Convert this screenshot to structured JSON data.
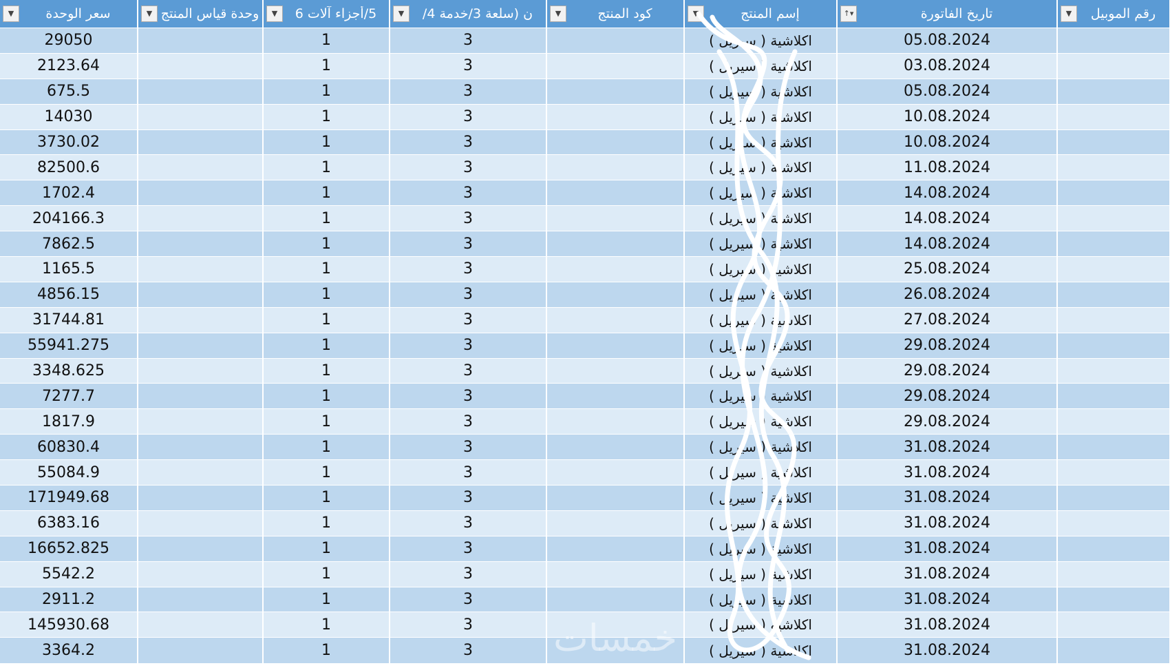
{
  "columns": [
    {
      "label": "سعر الوحدة",
      "filter": "filter-dropdown"
    },
    {
      "label": "وحدة قياس المنتج",
      "filter": "filter-dropdown"
    },
    {
      "label": "5/أجزاء آلات 6",
      "filter": "filter-dropdown"
    },
    {
      "label": "ن (سلعة 3/خدمة 4/",
      "filter": "filter-dropdown"
    },
    {
      "label": "كود المنتج",
      "filter": "filter-dropdown"
    },
    {
      "label": "إسم المنتج",
      "filter": "filter-dropdown"
    },
    {
      "label": "تاريخ الفاتورة",
      "filter": "sort-ascending-filter"
    },
    {
      "label": "رقم الموبيل",
      "filter": "filter-dropdown"
    }
  ],
  "rows": [
    {
      "price": "29050",
      "unit": "",
      "parts": "1",
      "type": "3",
      "code": "",
      "name": "اكلاشية ( سيريل )",
      "date": "05.08.2024",
      "mobile": ""
    },
    {
      "price": "2123.64",
      "unit": "",
      "parts": "1",
      "type": "3",
      "code": "",
      "name": "اكلاشية ( سيريل )",
      "date": "03.08.2024",
      "mobile": ""
    },
    {
      "price": "675.5",
      "unit": "",
      "parts": "1",
      "type": "3",
      "code": "",
      "name": "اكلاشية ( سيريل )",
      "date": "05.08.2024",
      "mobile": ""
    },
    {
      "price": "14030",
      "unit": "",
      "parts": "1",
      "type": "3",
      "code": "",
      "name": "اكلاشية ( سيريل )",
      "date": "10.08.2024",
      "mobile": ""
    },
    {
      "price": "3730.02",
      "unit": "",
      "parts": "1",
      "type": "3",
      "code": "",
      "name": "اكلاشية ( سيريل )",
      "date": "10.08.2024",
      "mobile": ""
    },
    {
      "price": "82500.6",
      "unit": "",
      "parts": "1",
      "type": "3",
      "code": "",
      "name": "اكلاشية ( سيريل )",
      "date": "11.08.2024",
      "mobile": ""
    },
    {
      "price": "1702.4",
      "unit": "",
      "parts": "1",
      "type": "3",
      "code": "",
      "name": "اكلاشية ( سيريل )",
      "date": "14.08.2024",
      "mobile": ""
    },
    {
      "price": "204166.3",
      "unit": "",
      "parts": "1",
      "type": "3",
      "code": "",
      "name": "اكلاشية ( سيريل )",
      "date": "14.08.2024",
      "mobile": ""
    },
    {
      "price": "7862.5",
      "unit": "",
      "parts": "1",
      "type": "3",
      "code": "",
      "name": "اكلاشية ( سيريل )",
      "date": "14.08.2024",
      "mobile": ""
    },
    {
      "price": "1165.5",
      "unit": "",
      "parts": "1",
      "type": "3",
      "code": "",
      "name": "اكلاشية ( سيريل )",
      "date": "25.08.2024",
      "mobile": ""
    },
    {
      "price": "4856.15",
      "unit": "",
      "parts": "1",
      "type": "3",
      "code": "",
      "name": "اكلاشية ( سيريل )",
      "date": "26.08.2024",
      "mobile": ""
    },
    {
      "price": "31744.81",
      "unit": "",
      "parts": "1",
      "type": "3",
      "code": "",
      "name": "اكلاشية ( سيريل )",
      "date": "27.08.2024",
      "mobile": ""
    },
    {
      "price": "55941.275",
      "unit": "",
      "parts": "1",
      "type": "3",
      "code": "",
      "name": "اكلاشية ( سيريل )",
      "date": "29.08.2024",
      "mobile": ""
    },
    {
      "price": "3348.625",
      "unit": "",
      "parts": "1",
      "type": "3",
      "code": "",
      "name": "اكلاشية ( سيريل )",
      "date": "29.08.2024",
      "mobile": ""
    },
    {
      "price": "7277.7",
      "unit": "",
      "parts": "1",
      "type": "3",
      "code": "",
      "name": "اكلاشية ( سيريل )",
      "date": "29.08.2024",
      "mobile": ""
    },
    {
      "price": "1817.9",
      "unit": "",
      "parts": "1",
      "type": "3",
      "code": "",
      "name": "اكلاشية ( سيريل )",
      "date": "29.08.2024",
      "mobile": ""
    },
    {
      "price": "60830.4",
      "unit": "",
      "parts": "1",
      "type": "3",
      "code": "",
      "name": "اكلاشية ( سيريل )",
      "date": "31.08.2024",
      "mobile": ""
    },
    {
      "price": "55084.9",
      "unit": "",
      "parts": "1",
      "type": "3",
      "code": "",
      "name": "اكلاشية ( سيريل )",
      "date": "31.08.2024",
      "mobile": ""
    },
    {
      "price": "171949.68",
      "unit": "",
      "parts": "1",
      "type": "3",
      "code": "",
      "name": "اكلاشية ( سيريل )",
      "date": "31.08.2024",
      "mobile": ""
    },
    {
      "price": "6383.16",
      "unit": "",
      "parts": "1",
      "type": "3",
      "code": "",
      "name": "اكلاشية ( سيريل )",
      "date": "31.08.2024",
      "mobile": ""
    },
    {
      "price": "16652.825",
      "unit": "",
      "parts": "1",
      "type": "3",
      "code": "",
      "name": "اكلاشية ( سيريل )",
      "date": "31.08.2024",
      "mobile": ""
    },
    {
      "price": "5542.2",
      "unit": "",
      "parts": "1",
      "type": "3",
      "code": "",
      "name": "اكلاشية ( سيريل )",
      "date": "31.08.2024",
      "mobile": ""
    },
    {
      "price": "2911.2",
      "unit": "",
      "parts": "1",
      "type": "3",
      "code": "",
      "name": "اكلاشية ( سيريل )",
      "date": "31.08.2024",
      "mobile": ""
    },
    {
      "price": "145930.68",
      "unit": "",
      "parts": "1",
      "type": "3",
      "code": "",
      "name": "اكلاشية ( سيريل )",
      "date": "31.08.2024",
      "mobile": ""
    },
    {
      "price": "3364.2",
      "unit": "",
      "parts": "1",
      "type": "3",
      "code": "",
      "name": "اكلاشية ( سيريل )",
      "date": "31.08.2024",
      "mobile": ""
    }
  ],
  "watermark": "خمسات",
  "colors": {
    "header": "#5B9BD5",
    "row_odd": "#BDD7EE",
    "row_even": "#DDEBF7"
  }
}
